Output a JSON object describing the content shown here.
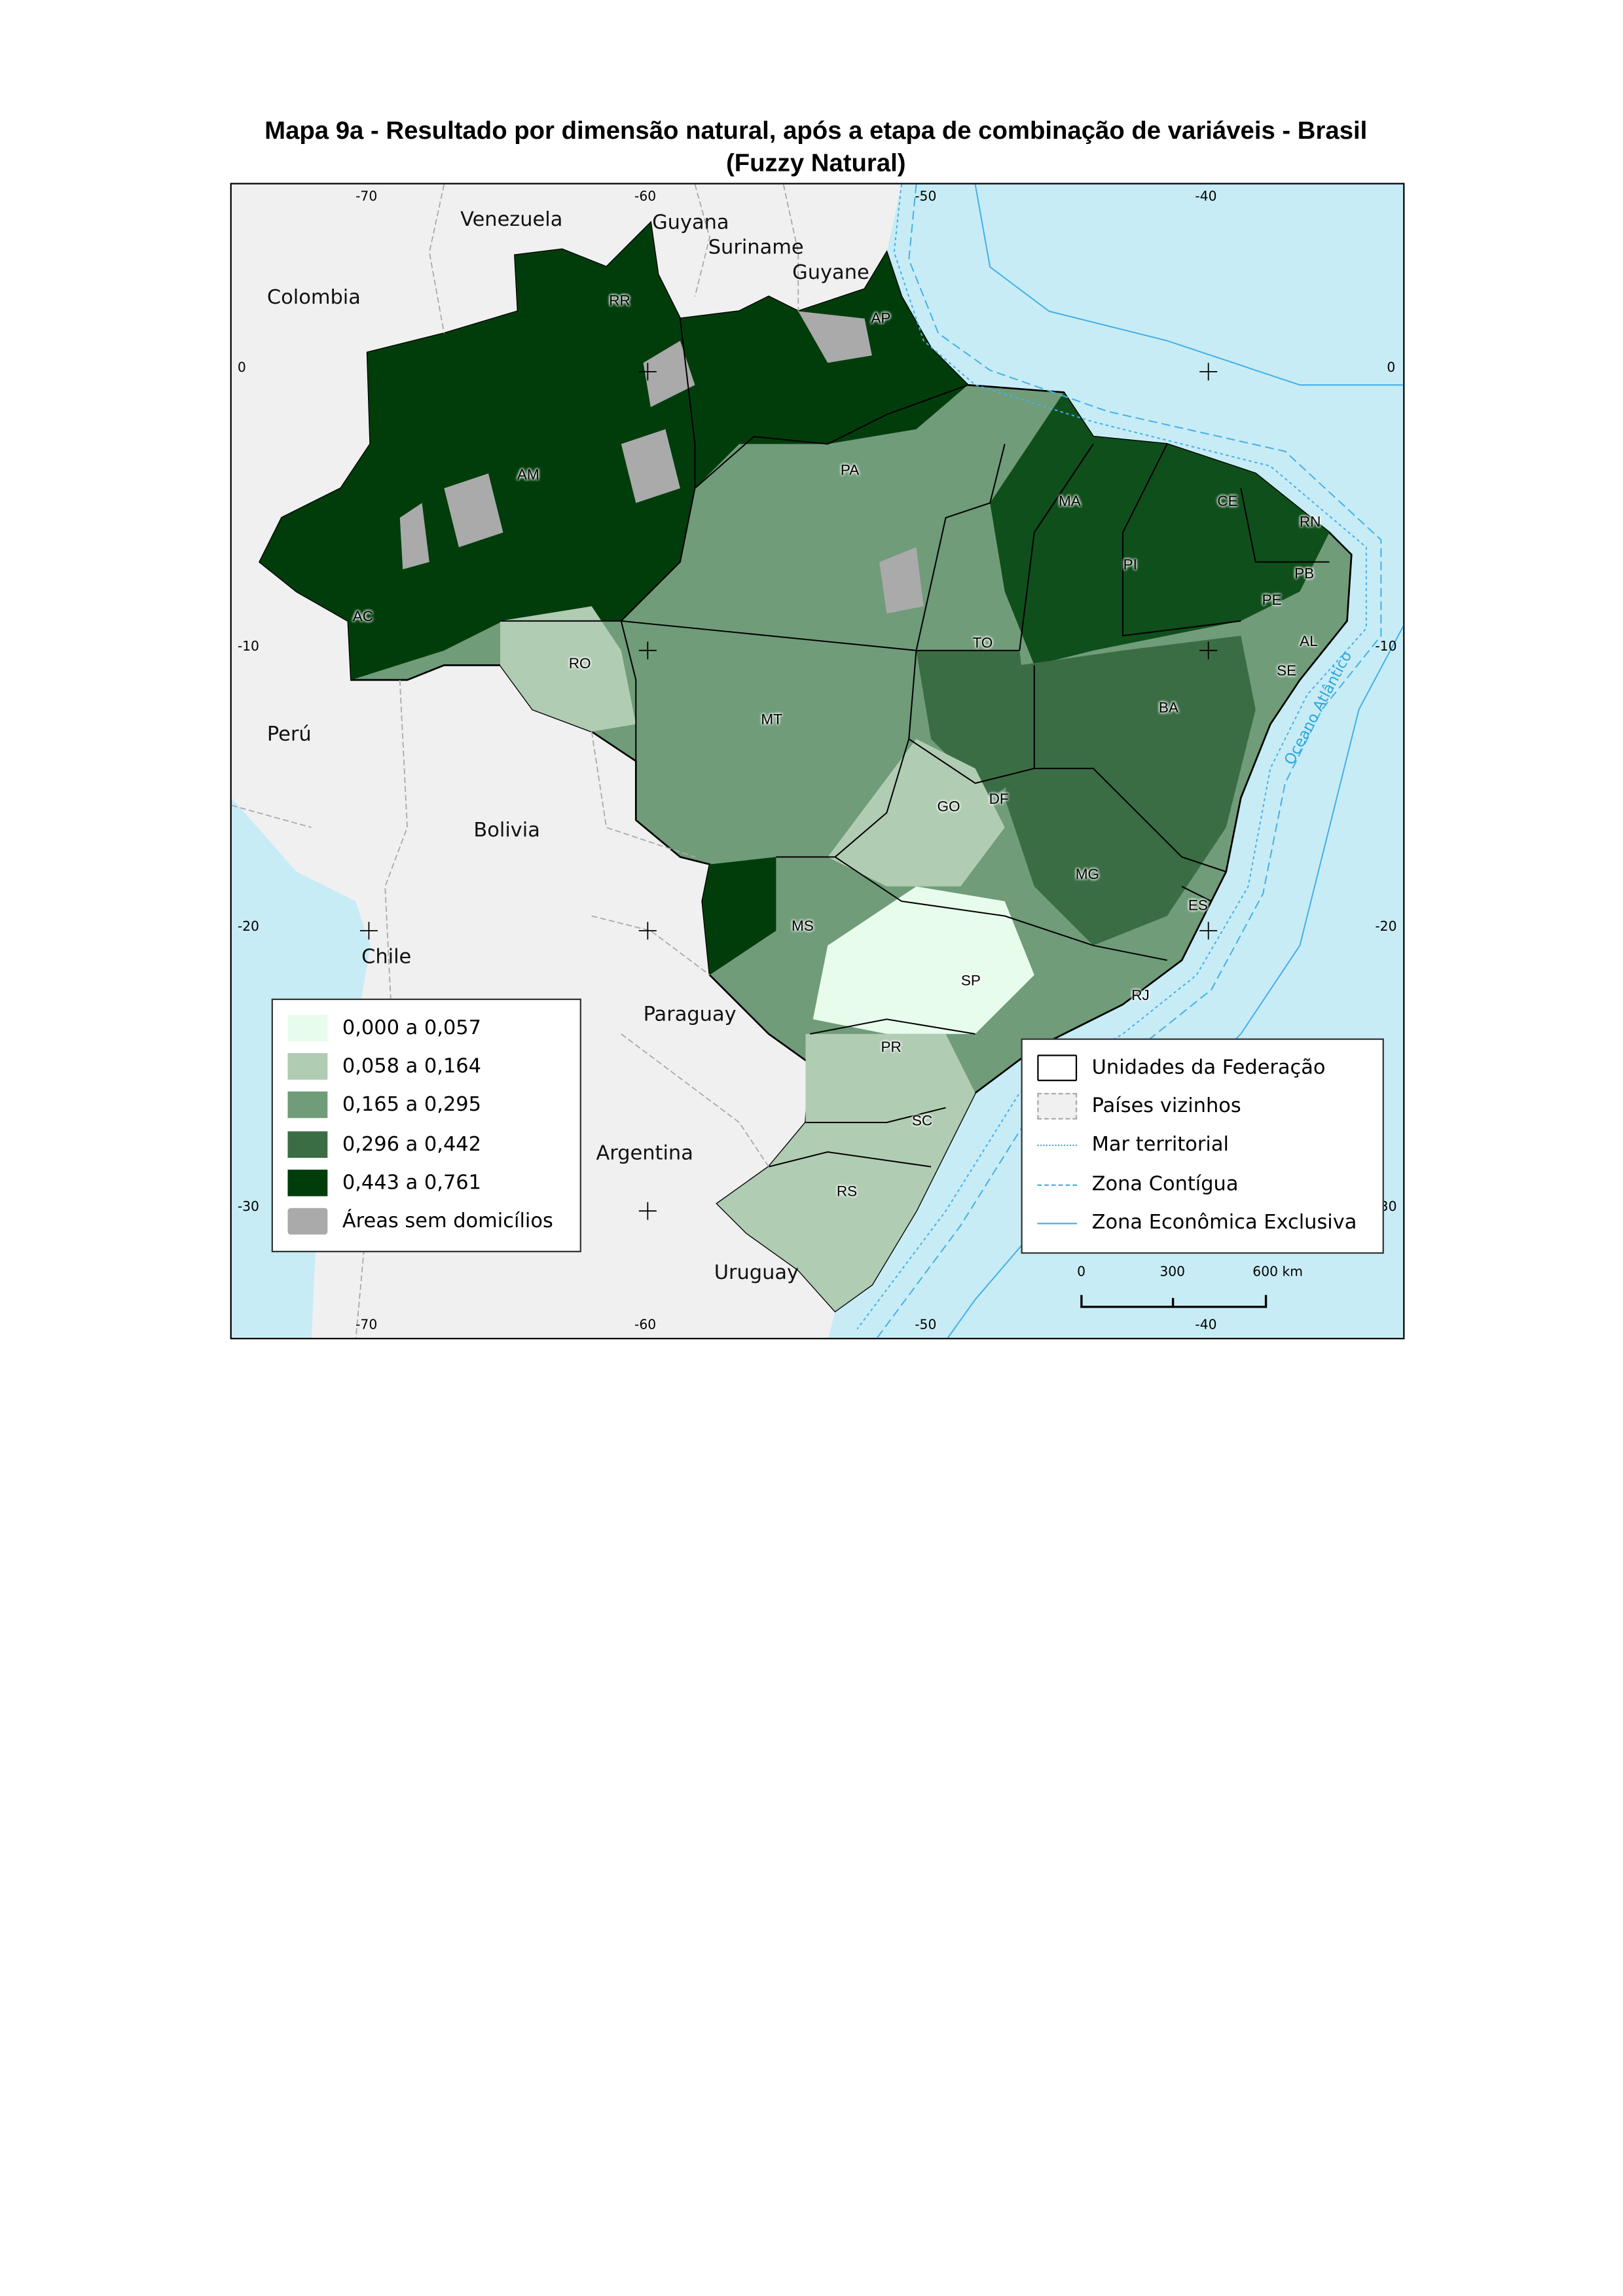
{
  "title": {
    "line1": "Mapa 9a - Resultado por dimensão natural, após a etapa de combinação de variáveis - Brasil",
    "line2": "(Fuzzy Natural)"
  },
  "map": {
    "colors": {
      "ocean": "#c8ecf5",
      "neighbors": "#f0f0f0",
      "maritime_lines": "#45b0ea"
    },
    "longitude_labels": [
      "-70",
      "-60",
      "-50",
      "-40"
    ],
    "latitude_labels": [
      "0",
      "-10",
      "-20",
      "-30"
    ],
    "countries": [
      "Venezuela",
      "Guyana",
      "Suriname",
      "Guyane",
      "Colombia",
      "Perú",
      "Bolivia",
      "Chile",
      "Paraguay",
      "Argentina",
      "Uruguay"
    ],
    "states": [
      "RR",
      "AP",
      "AM",
      "PA",
      "MA",
      "CE",
      "RN",
      "PB",
      "PI",
      "PE",
      "AL",
      "SE",
      "AC",
      "RO",
      "TO",
      "BA",
      "MT",
      "GO",
      "DF",
      "MG",
      "ES",
      "MS",
      "SP",
      "RJ",
      "PR",
      "SC",
      "RS"
    ],
    "ocean_label": "Oceano Atlântico"
  },
  "legend_classes": {
    "items": [
      {
        "label": "0,000 a 0,057",
        "color": "#e8fcec"
      },
      {
        "label": "0,058 a 0,164",
        "color": "#b0ccb3"
      },
      {
        "label": "0,165 a 0,295",
        "color": "#709c79"
      },
      {
        "label": "0,296 a 0,442",
        "color": "#3b6d45"
      },
      {
        "label": "0,443 a 0,761",
        "color": "#003d0b"
      },
      {
        "label": "Áreas sem domicílios",
        "color": "#aaaaaa"
      }
    ]
  },
  "legend_boundaries": {
    "items": [
      {
        "label": "Unidades da Federação",
        "symbol": "black-outline-box"
      },
      {
        "label": "Países vizinhos",
        "symbol": "gray-dashed-box"
      },
      {
        "label": "Mar territorial",
        "symbol": "dotted-blue-line"
      },
      {
        "label": "Zona Contígua",
        "symbol": "dashed-blue-line"
      },
      {
        "label": "Zona Econômica Exclusiva",
        "symbol": "solid-blue-line"
      }
    ]
  },
  "scale_bar": {
    "labels": [
      "0",
      "300",
      "600 km"
    ]
  }
}
